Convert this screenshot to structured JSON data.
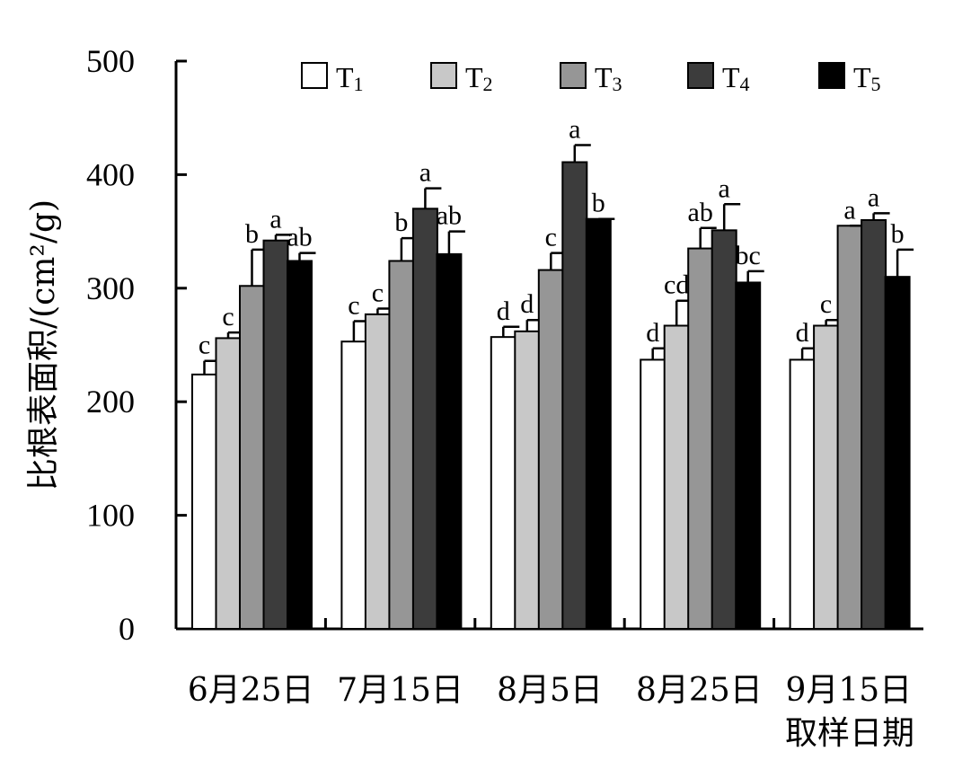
{
  "chart_data": {
    "type": "bar",
    "title": "",
    "xlabel": "取样日期",
    "ylabel": "比根表面积/(cm²/g)",
    "ylim": [
      0,
      500
    ],
    "yticks": [
      0,
      100,
      200,
      300,
      400,
      500
    ],
    "grid": false,
    "legend_position": "top",
    "categories": [
      "6月25日",
      "7月15日",
      "8月5日",
      "8月25日",
      "9月15日"
    ],
    "series": [
      {
        "name": "T1",
        "label_base": "T",
        "label_sub": "1",
        "color": "#ffffff",
        "values": [
          224,
          253,
          257,
          237,
          237
        ],
        "errors": [
          12,
          18,
          9,
          10,
          10
        ],
        "letters": [
          "c",
          "c",
          "d",
          "d",
          "d"
        ]
      },
      {
        "name": "T2",
        "label_base": "T",
        "label_sub": "2",
        "color": "#c8c8c8",
        "values": [
          256,
          277,
          262,
          267,
          267
        ],
        "errors": [
          5,
          5,
          10,
          22,
          5
        ],
        "letters": [
          "c",
          "c",
          "d",
          "cd",
          "c"
        ]
      },
      {
        "name": "T3",
        "label_base": "T",
        "label_sub": "3",
        "color": "#969696",
        "values": [
          302,
          324,
          316,
          335,
          355
        ],
        "errors": [
          32,
          20,
          15,
          18,
          0
        ],
        "letters": [
          "b",
          "b",
          "c",
          "ab",
          "a"
        ]
      },
      {
        "name": "T4",
        "label_base": "T",
        "label_sub": "4",
        "color": "#3c3c3c",
        "values": [
          342,
          370,
          411,
          351,
          360
        ],
        "errors": [
          5,
          18,
          15,
          23,
          6
        ],
        "letters": [
          "a",
          "a",
          "a",
          "a",
          "a"
        ]
      },
      {
        "name": "T5",
        "label_base": "T",
        "label_sub": "5",
        "color": "#000000",
        "values": [
          324,
          330,
          361,
          305,
          310
        ],
        "errors": [
          7,
          20,
          0,
          10,
          24
        ],
        "letters": [
          "ab",
          "ab",
          "b",
          "bc",
          "b"
        ]
      }
    ]
  }
}
